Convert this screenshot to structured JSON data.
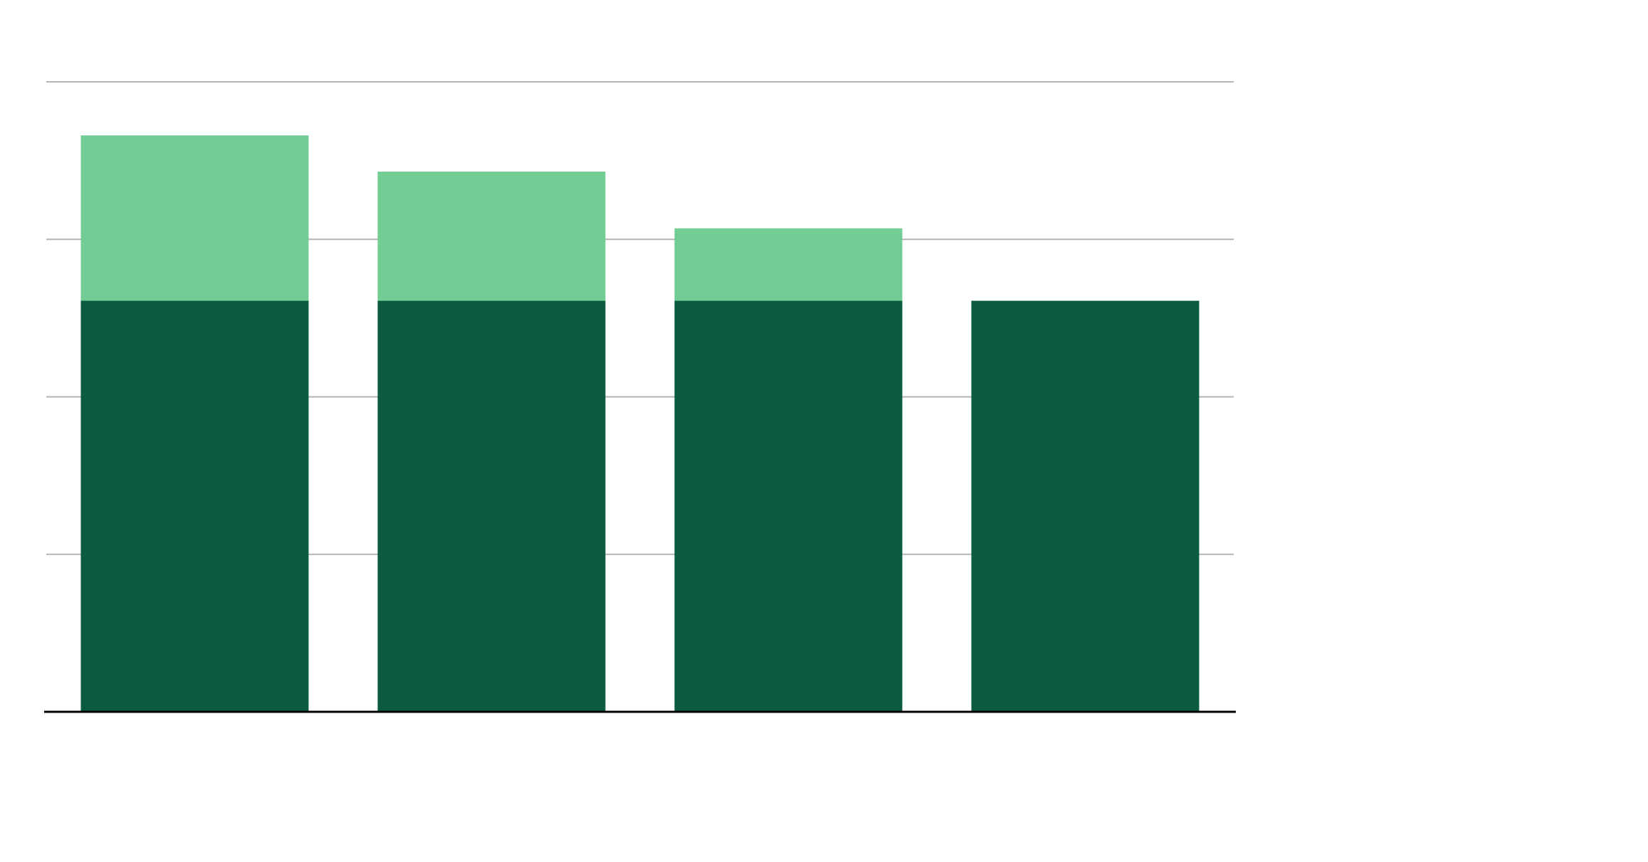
{
  "chart_data": {
    "type": "stacked-bar",
    "categories": [
      null,
      null,
      null,
      null
    ],
    "series": [
      {
        "color": "#0b5c3e",
        "values": [
          2.61,
          2.61,
          2.61,
          2.61
        ]
      },
      {
        "color": "#72cc94",
        "values": [
          1.05,
          0.82,
          0.46,
          0
        ]
      }
    ],
    "ylim": [
      0,
      4
    ],
    "yticks": [
      0,
      1,
      2,
      3,
      4
    ],
    "grid": true
  }
}
